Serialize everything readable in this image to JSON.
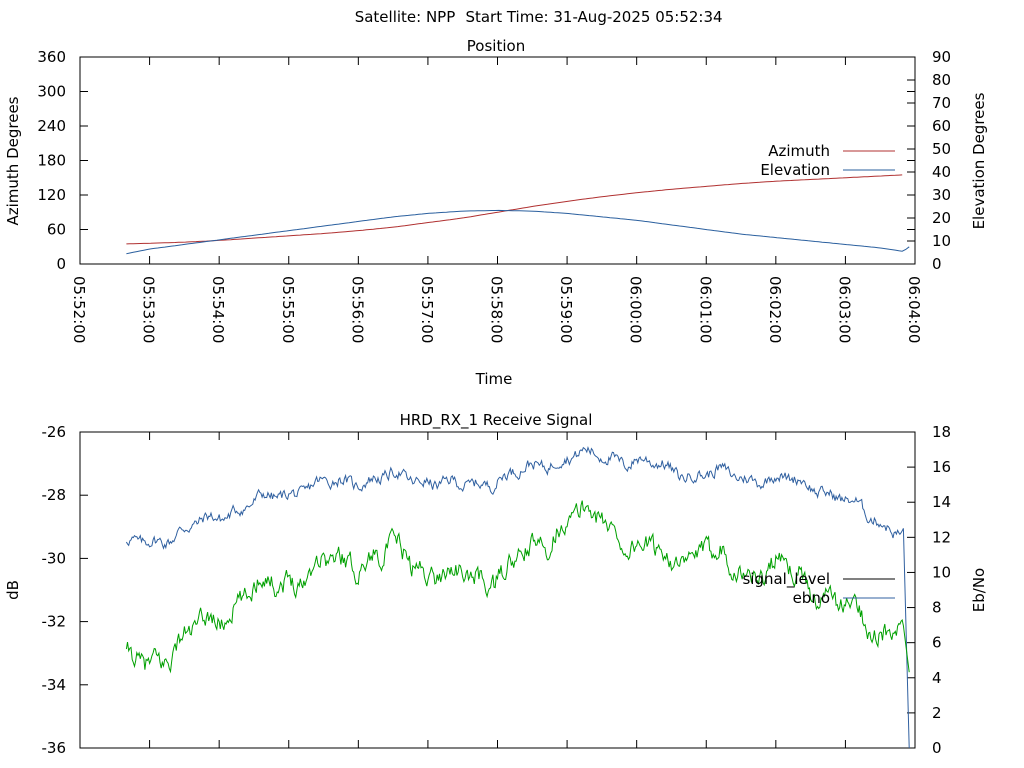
{
  "header": {
    "satellite_label": "Satellite: NPP",
    "start_time_label": "Start Time: 31-Aug-2025 05:52:34"
  },
  "chart_data": [
    {
      "id": "position",
      "type": "line",
      "title": "Position",
      "xlabel": "Time",
      "ylabel": "Azimuth Degrees",
      "y2label": "Elevation Degrees",
      "xlim": [
        "05:52:00",
        "06:04:00"
      ],
      "x_ticks": [
        "05:52:00",
        "05:53:00",
        "05:54:00",
        "05:55:00",
        "05:56:00",
        "05:57:00",
        "05:58:00",
        "05:59:00",
        "06:00:00",
        "06:01:00",
        "06:02:00",
        "06:03:00",
        "06:04:00"
      ],
      "ylim": [
        0,
        360
      ],
      "y_ticks": [
        0,
        60,
        120,
        180,
        240,
        300,
        360
      ],
      "y2lim": [
        0,
        90
      ],
      "y2_ticks": [
        0,
        10,
        20,
        30,
        40,
        50,
        60,
        70,
        80,
        90
      ],
      "legend_position": "right",
      "colors": {
        "azimuth": "#b03030",
        "elevation": "#2a5f9e"
      },
      "series": [
        {
          "name": "Azimuth",
          "axis": "left",
          "x": [
            "05:52:40",
            "05:53:00",
            "05:53:30",
            "05:54:00",
            "05:54:30",
            "05:55:00",
            "05:55:30",
            "05:56:00",
            "05:56:30",
            "05:57:00",
            "05:57:30",
            "05:58:00",
            "05:58:30",
            "05:59:00",
            "05:59:30",
            "06:00:00",
            "06:00:30",
            "06:01:00",
            "06:01:30",
            "06:02:00",
            "06:02:30",
            "06:03:00",
            "06:03:30",
            "06:03:50"
          ],
          "values": [
            35,
            36,
            38,
            41,
            45,
            49,
            53,
            58,
            64,
            72,
            80,
            90,
            100,
            109,
            117,
            124,
            130,
            135,
            140,
            144,
            147,
            150,
            153,
            155
          ]
        },
        {
          "name": "Elevation",
          "axis": "right",
          "x": [
            "05:52:40",
            "05:53:00",
            "05:53:30",
            "05:54:00",
            "05:54:30",
            "05:55:00",
            "05:55:30",
            "05:56:00",
            "05:56:30",
            "05:57:00",
            "05:57:30",
            "05:58:00",
            "05:58:30",
            "05:59:00",
            "05:59:30",
            "06:00:00",
            "06:00:30",
            "06:01:00",
            "06:01:30",
            "06:02:00",
            "06:02:30",
            "06:03:00",
            "06:03:30",
            "06:03:50",
            "06:03:55"
          ],
          "values": [
            4.5,
            6.5,
            8.5,
            10.5,
            12.5,
            14.5,
            16.5,
            18.5,
            20.5,
            22,
            23,
            23.3,
            23,
            22,
            20.5,
            19,
            17,
            15,
            13,
            11.5,
            10,
            8.5,
            7,
            5.5,
            7.5
          ]
        }
      ]
    },
    {
      "id": "receive-signal",
      "type": "line",
      "title": "HRD_RX_1 Receive Signal",
      "xlabel": "",
      "ylabel": "dB",
      "y2label": "Eb/No",
      "xlim": [
        "05:52:00",
        "06:04:00"
      ],
      "ylim": [
        -36,
        -26
      ],
      "y_ticks": [
        -36,
        -34,
        -32,
        -30,
        -28,
        -26
      ],
      "y2lim": [
        0,
        18
      ],
      "y2_ticks": [
        0,
        2,
        4,
        6,
        8,
        10,
        12,
        14,
        16,
        18
      ],
      "legend_position": "right",
      "colors": {
        "signal_level": "#000000",
        "ebno": "#3060a0",
        "green": "#00a000"
      },
      "series": [
        {
          "name": "signal_level",
          "axis": "left",
          "x": [
            "05:52:40",
            "05:53:00",
            "05:53:30",
            "05:54:00",
            "05:54:30",
            "05:55:00",
            "05:55:30",
            "05:56:00",
            "05:56:30",
            "05:57:00",
            "05:57:30",
            "05:58:00",
            "05:58:30",
            "05:59:00",
            "05:59:30",
            "06:00:00",
            "06:00:30",
            "06:01:00",
            "06:01:30",
            "06:02:00",
            "06:02:30",
            "06:03:00",
            "06:03:30",
            "06:03:50"
          ],
          "values": [
            -33.4,
            -33.3,
            -32.6,
            -31.8,
            -31.0,
            -30.6,
            -30.2,
            -30.0,
            -29.8,
            -30.3,
            -30.7,
            -30.5,
            -29.9,
            -28.6,
            -28.8,
            -29.6,
            -30.1,
            -29.7,
            -30.4,
            -30.3,
            -30.8,
            -31.6,
            -32.3,
            -32.1
          ]
        },
        {
          "name": "ebno",
          "axis": "right",
          "x": [
            "05:52:40",
            "05:53:00",
            "05:53:30",
            "05:54:00",
            "05:54:30",
            "05:55:00",
            "05:55:30",
            "05:56:00",
            "05:56:30",
            "05:57:00",
            "05:57:30",
            "05:58:00",
            "05:58:30",
            "05:59:00",
            "05:59:30",
            "06:00:00",
            "06:00:30",
            "06:01:00",
            "06:01:30",
            "06:02:00",
            "06:02:30",
            "06:03:00",
            "06:03:30",
            "06:03:50",
            "06:03:55"
          ],
          "values": [
            11.5,
            11.8,
            12.3,
            13.3,
            13.9,
            14.6,
            15.0,
            15.3,
            15.4,
            15.3,
            14.8,
            15.4,
            15.9,
            16.7,
            16.6,
            16.4,
            15.8,
            15.6,
            15.5,
            15.3,
            15.1,
            14.0,
            13.0,
            12.2,
            0.0
          ]
        },
        {
          "name": "",
          "axis": "left",
          "x": [
            "05:52:40",
            "05:53:00",
            "05:53:30",
            "05:54:00",
            "05:54:30",
            "05:55:00",
            "05:55:30",
            "05:56:00",
            "05:56:30",
            "05:57:00",
            "05:57:30",
            "05:58:00",
            "05:58:30",
            "05:59:00",
            "05:59:30",
            "06:00:00",
            "06:00:30",
            "06:01:00",
            "06:01:30",
            "06:02:00",
            "06:02:30",
            "06:03:00",
            "06:03:30",
            "06:03:50",
            "06:03:55"
          ],
          "values": [
            -33.4,
            -33.3,
            -32.6,
            -31.8,
            -31.0,
            -30.6,
            -30.2,
            -30.0,
            -29.8,
            -30.3,
            -30.7,
            -30.5,
            -29.9,
            -28.6,
            -28.8,
            -29.6,
            -30.1,
            -29.7,
            -30.4,
            -30.3,
            -30.8,
            -31.6,
            -32.3,
            -32.1,
            -33.6
          ]
        }
      ]
    }
  ]
}
